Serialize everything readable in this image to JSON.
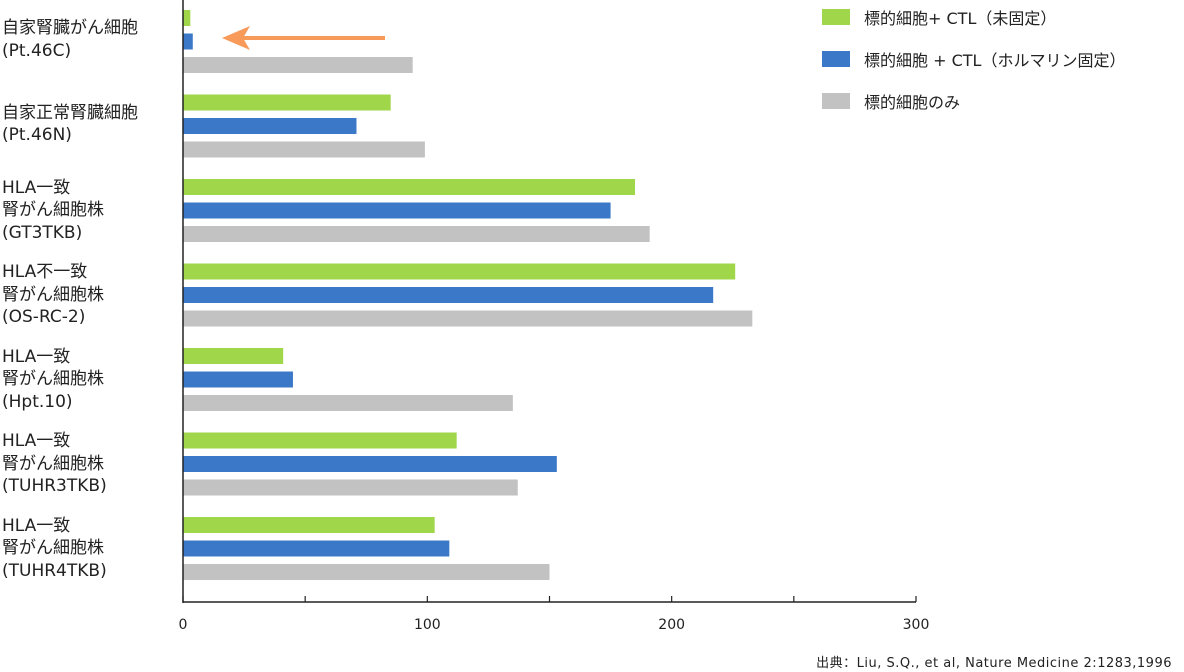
{
  "chart_data": {
    "type": "bar",
    "orientation": "horizontal",
    "categories": [
      [
        "自家腎臓がん細胞",
        "(Pt.46C)"
      ],
      [
        "自家正常腎臓細胞",
        "(Pt.46N)"
      ],
      [
        "HLA一致",
        "腎がん細胞株",
        "(GT3TKB)"
      ],
      [
        "HLA不一致",
        "腎がん細胞株",
        "(OS-RC-2)"
      ],
      [
        "HLA一致",
        "腎がん細胞株",
        "(Hpt.10)"
      ],
      [
        "HLA一致",
        "腎がん細胞株",
        "(TUHR3TKB)"
      ],
      [
        "HLA一致",
        "腎がん細胞株",
        "(TUHR4TKB)"
      ]
    ],
    "series": [
      {
        "name": "標的細胞+ CTL（未固定）",
        "color": "#9fd64a",
        "values": [
          3,
          85,
          185,
          226,
          41,
          112,
          103
        ]
      },
      {
        "name": "標的細胞 + CTL（ホルマリン固定）",
        "color": "#3b78c8",
        "values": [
          4,
          71,
          175,
          217,
          45,
          153,
          109
        ]
      },
      {
        "name": "標的細胞のみ",
        "color": "#c2c2c2",
        "values": [
          94,
          99,
          191,
          233,
          135,
          137,
          150
        ]
      }
    ],
    "xlim": [
      0,
      300
    ],
    "xticks": [
      "0",
      "100",
      "200",
      "300"
    ],
    "grid": false,
    "legend_position": "top-right",
    "annotation": {
      "type": "arrow",
      "color": "#f79a5a",
      "target_category": 0,
      "note": "arrow pointing to near-zero bars"
    }
  },
  "source": "出典：Liu, S.Q., et al, Nature Medicine 2:1283,1996"
}
